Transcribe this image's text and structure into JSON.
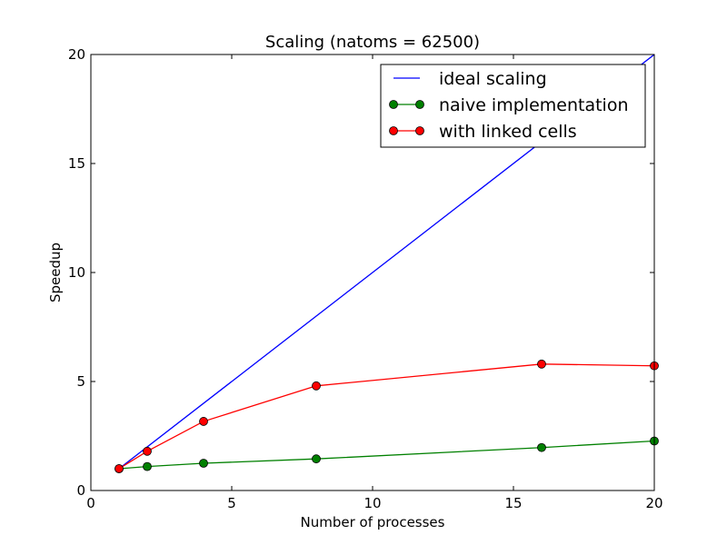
{
  "chart_data": {
    "type": "line",
    "title": "Scaling (natoms = 62500)",
    "xlabel": "Number of processes",
    "ylabel": "Speedup",
    "xlim": [
      0,
      20
    ],
    "ylim": [
      0,
      20
    ],
    "xticks": [
      0,
      5,
      10,
      15,
      20
    ],
    "yticks": [
      0,
      5,
      10,
      15,
      20
    ],
    "legend_position": "top-right",
    "series": [
      {
        "name": "ideal scaling",
        "color": "#0000ff",
        "markers": false,
        "x": [
          1,
          20
        ],
        "y": [
          1,
          20
        ]
      },
      {
        "name": "naive implementation",
        "color": "#008000",
        "markers": true,
        "x": [
          1,
          2,
          4,
          8,
          16,
          20
        ],
        "y": [
          1.0,
          1.1,
          1.25,
          1.45,
          1.97,
          2.27
        ]
      },
      {
        "name": "with linked cells",
        "color": "#ff0000",
        "markers": true,
        "x": [
          1,
          2,
          4,
          8,
          16,
          20
        ],
        "y": [
          1.0,
          1.8,
          3.17,
          4.8,
          5.8,
          5.72
        ]
      }
    ]
  }
}
